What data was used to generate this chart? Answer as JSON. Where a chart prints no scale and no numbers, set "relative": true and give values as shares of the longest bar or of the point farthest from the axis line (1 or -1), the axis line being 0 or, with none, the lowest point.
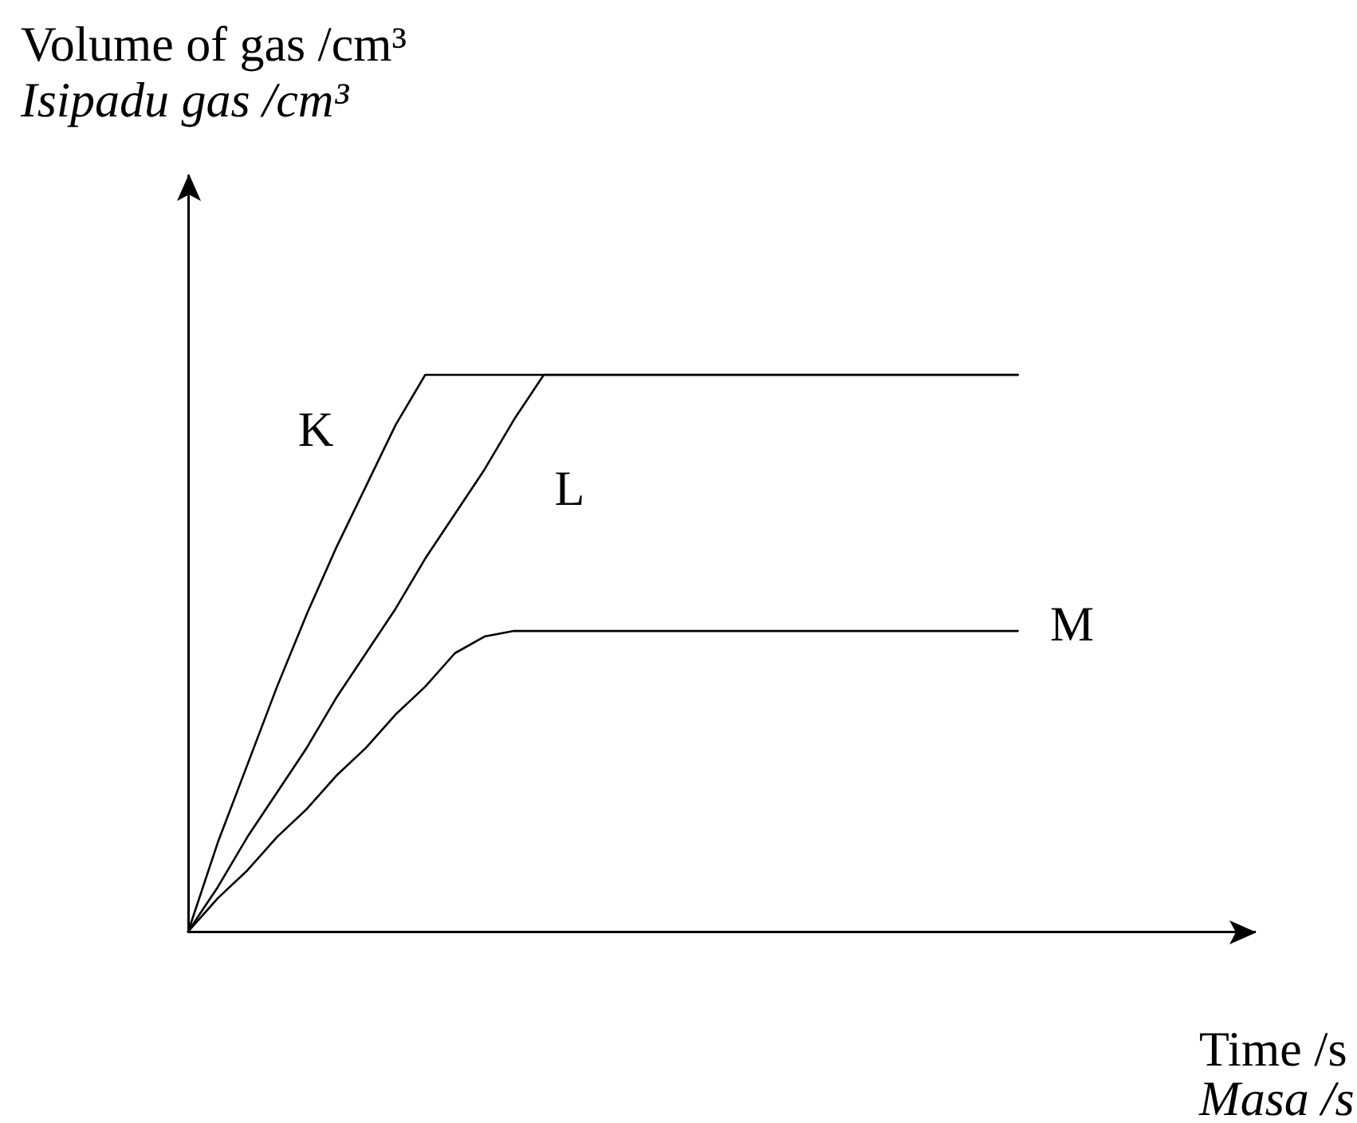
{
  "chart_data": {
    "type": "line",
    "xlabel": "Time /s\nMasa /s",
    "ylabel": "Volume of gas /cm³\nIsipadu gas /cm³",
    "relative": true,
    "marker": "none",
    "tick_labels": false,
    "categories": [
      null,
      null,
      null,
      null,
      null,
      null,
      null,
      null,
      null,
      null,
      null,
      null,
      null,
      null,
      null,
      null,
      null,
      null,
      null,
      null,
      null,
      null,
      null,
      null,
      null,
      null,
      null,
      null,
      null,
      null,
      null,
      null,
      null,
      null,
      null,
      null,
      null
    ],
    "series": [
      {
        "name": "K",
        "color": "#000000",
        "values": [
          0,
          0.16,
          0.3,
          0.44,
          0.57,
          0.69,
          0.8,
          0.91,
          1,
          1,
          1,
          1,
          1,
          1,
          1,
          1,
          1,
          1,
          1,
          1,
          1,
          1,
          1,
          1,
          1,
          1,
          1,
          1,
          1,
          null,
          null,
          null,
          null,
          null,
          null,
          null,
          null
        ]
      },
      {
        "name": "L",
        "color": "#000000",
        "values": [
          0,
          0.08,
          0.17,
          0.25,
          0.33,
          0.42,
          0.5,
          0.58,
          0.67,
          0.75,
          0.83,
          0.92,
          1,
          1,
          1,
          1,
          1,
          1,
          1,
          1,
          1,
          1,
          1,
          1,
          1,
          1,
          1,
          1,
          1,
          null,
          null,
          null,
          null,
          null,
          null,
          null,
          null
        ]
      },
      {
        "name": "M",
        "color": "#000000",
        "values": [
          0,
          0.06,
          0.11,
          0.17,
          0.22,
          0.28,
          0.33,
          0.39,
          0.44,
          0.5,
          0.53,
          0.54,
          0.54,
          0.54,
          0.54,
          0.54,
          0.54,
          0.54,
          0.54,
          0.54,
          0.54,
          0.54,
          0.54,
          0.54,
          0.54,
          0.54,
          0.54,
          0.54,
          0.54,
          null,
          null,
          null,
          null,
          null,
          null,
          null,
          null
        ]
      }
    ]
  }
}
